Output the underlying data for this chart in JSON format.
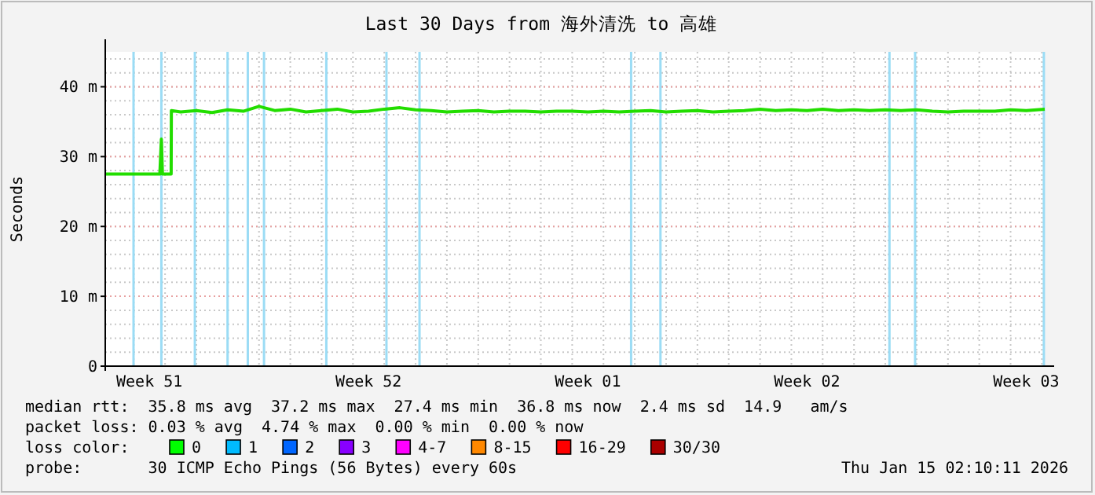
{
  "chart_data": {
    "type": "line",
    "title": "Last 30 Days from 海外清洗 to 高雄",
    "ylabel": "Seconds",
    "xlim": [
      "2025-12-16T02:10",
      "2026-01-15T02:10"
    ],
    "xticks": [
      {
        "value": "2025-12-17T12:00",
        "label": "Week 51"
      },
      {
        "value": "2025-12-24T12:00",
        "label": "Week 52"
      },
      {
        "value": "2025-12-31T12:00",
        "label": "Week 01"
      },
      {
        "value": "2026-01-07T12:00",
        "label": "Week 02"
      },
      {
        "value": "2026-01-14T12:00",
        "label": "Week 03"
      }
    ],
    "ylim": [
      0,
      45
    ],
    "yticks": [
      0,
      {
        "value": 10,
        "label": "10 m"
      },
      {
        "value": 20,
        "label": "20 m"
      },
      {
        "value": 30,
        "label": "30 m"
      },
      {
        "value": 40,
        "label": "40 m"
      }
    ],
    "grid": true,
    "series": [
      {
        "color": "#22dd00",
        "x": [
          "2025-12-16T02:10",
          "2025-12-17T20:00",
          "2025-12-17T21:10",
          "2025-12-17T22:00",
          "2025-12-18T04:40",
          "2025-12-18T04:50",
          "2025-12-18T12:00",
          "2025-12-19T00:00",
          "2025-12-19T12:00",
          "2025-12-20T00:00",
          "2025-12-20T12:00",
          "2025-12-21T00:00",
          "2025-12-21T12:00",
          "2025-12-22T00:00",
          "2025-12-22T12:00",
          "2025-12-23T00:00",
          "2025-12-23T12:00",
          "2025-12-24T00:00",
          "2025-12-24T12:00",
          "2025-12-25T00:00",
          "2025-12-25T12:00",
          "2025-12-26T00:00",
          "2025-12-26T12:00",
          "2025-12-27T00:00",
          "2025-12-27T12:00",
          "2025-12-28T00:00",
          "2025-12-28T12:00",
          "2025-12-29T00:00",
          "2025-12-29T12:00",
          "2025-12-30T00:00",
          "2025-12-30T12:00",
          "2025-12-31T00:00",
          "2025-12-31T12:00",
          "2026-01-01T00:00",
          "2026-01-01T12:00",
          "2026-01-02T00:00",
          "2026-01-02T12:00",
          "2026-01-03T00:00",
          "2026-01-03T12:00",
          "2026-01-04T00:00",
          "2026-01-04T12:00",
          "2026-01-05T00:00",
          "2026-01-05T12:00",
          "2026-01-06T00:00",
          "2026-01-06T12:00",
          "2026-01-07T00:00",
          "2026-01-07T12:00",
          "2026-01-08T00:00",
          "2026-01-08T12:00",
          "2026-01-09T00:00",
          "2026-01-09T12:00",
          "2026-01-10T00:00",
          "2026-01-10T12:00",
          "2026-01-11T00:00",
          "2026-01-11T12:00",
          "2026-01-12T00:00",
          "2026-01-12T12:00",
          "2026-01-13T00:00",
          "2026-01-13T12:00",
          "2026-01-14T00:00",
          "2026-01-14T12:00",
          "2026-01-15T02:10"
        ],
        "values": [
          27.5,
          27.5,
          32.5,
          27.5,
          27.5,
          36.6,
          36.4,
          36.6,
          36.3,
          36.7,
          36.5,
          37.2,
          36.6,
          36.8,
          36.4,
          36.6,
          36.8,
          36.4,
          36.5,
          36.8,
          37.0,
          36.7,
          36.6,
          36.4,
          36.5,
          36.6,
          36.4,
          36.5,
          36.5,
          36.4,
          36.5,
          36.5,
          36.4,
          36.5,
          36.4,
          36.5,
          36.6,
          36.4,
          36.5,
          36.6,
          36.4,
          36.5,
          36.6,
          36.8,
          36.6,
          36.7,
          36.6,
          36.8,
          36.6,
          36.7,
          36.6,
          36.7,
          36.6,
          36.7,
          36.5,
          36.4,
          36.5,
          36.5,
          36.5,
          36.7,
          36.6,
          36.8
        ]
      }
    ],
    "ref_lines": [
      {
        "axis": "x",
        "value": "2025-12-16T23:50",
        "color": "#9bdcf5"
      },
      {
        "axis": "x",
        "value": "2025-12-17T21:10",
        "color": "#9bdcf5"
      },
      {
        "axis": "x",
        "value": "2025-12-18T22:50",
        "color": "#9bdcf5"
      },
      {
        "axis": "x",
        "value": "2025-12-19T23:55",
        "color": "#9bdcf5"
      },
      {
        "axis": "x",
        "value": "2025-12-20T15:25",
        "color": "#9bdcf5"
      },
      {
        "axis": "x",
        "value": "2025-12-21T03:50",
        "color": "#9bdcf5"
      },
      {
        "axis": "x",
        "value": "2025-12-23T03:35",
        "color": "#9bdcf5"
      },
      {
        "axis": "x",
        "value": "2025-12-25T01:40",
        "color": "#9bdcf5"
      },
      {
        "axis": "x",
        "value": "2025-12-26T03:00",
        "color": "#9bdcf5"
      },
      {
        "axis": "x",
        "value": "2026-01-01T21:10",
        "color": "#9bdcf5"
      },
      {
        "axis": "x",
        "value": "2026-01-02T19:40",
        "color": "#9bdcf5"
      },
      {
        "axis": "x",
        "value": "2026-01-10T03:10",
        "color": "#9bdcf5"
      },
      {
        "axis": "x",
        "value": "2026-01-10T22:50",
        "color": "#9bdcf5"
      },
      {
        "axis": "x",
        "value": "2026-01-15T01:30",
        "color": "#9bdcf5"
      }
    ],
    "annotations": [
      "median rtt:  35.8 ms avg  37.2 ms max  27.4 ms min  36.8 ms now  2.4 ms sd  14.9   am/s",
      "packet loss: 0.03 % avg  4.74 % max  0.00 % min  0.00 % now",
      "loss color:",
      "0",
      "1",
      "2",
      "3",
      "4-7",
      "8-15",
      "16-29",
      "30/30",
      "probe:       30 ICMP Echo Pings (56 Bytes) every 60s",
      "Thu Jan 15 02:10:11 2026"
    ]
  }
}
